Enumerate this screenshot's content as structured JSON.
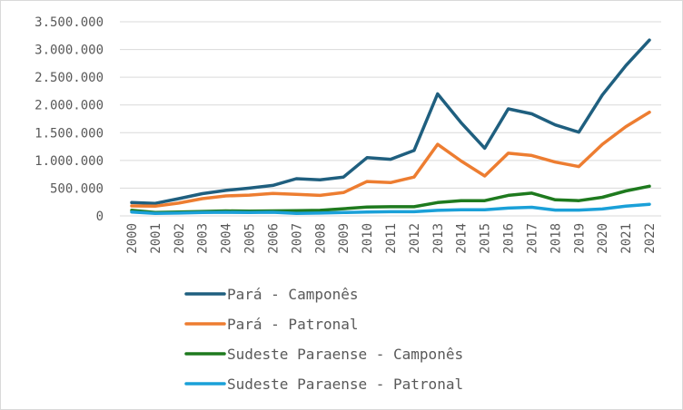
{
  "chart_data": {
    "type": "line",
    "title": "",
    "xlabel": "",
    "ylabel": "",
    "ylim": [
      0,
      3500000
    ],
    "y_ticks": [
      "0",
      "500.000",
      "1.000.000",
      "1.500.000",
      "2.000.000",
      "2.500.000",
      "3.000.000",
      "3.500.000"
    ],
    "grid": "horizontal",
    "legend_position": "bottom",
    "x": [
      "2000",
      "2001",
      "2002",
      "2003",
      "2004",
      "2005",
      "2006",
      "2007",
      "2008",
      "2009",
      "2010",
      "2011",
      "2012",
      "2013",
      "2014",
      "2015",
      "2016",
      "2017",
      "2018",
      "2019",
      "2020",
      "2021",
      "2022"
    ],
    "series": [
      {
        "name": "Pará - Camponês",
        "color": "#1f5f7f",
        "values": [
          240000,
          225000,
          310000,
          400000,
          460000,
          500000,
          550000,
          670000,
          650000,
          700000,
          1050000,
          1020000,
          1180000,
          2200000,
          1680000,
          1220000,
          1930000,
          1840000,
          1640000,
          1510000,
          2180000,
          2710000,
          3170000
        ]
      },
      {
        "name": "Pará - Patronal",
        "color": "#ed7d31",
        "values": [
          180000,
          175000,
          230000,
          310000,
          360000,
          375000,
          405000,
          390000,
          370000,
          420000,
          620000,
          600000,
          700000,
          1290000,
          990000,
          720000,
          1130000,
          1090000,
          970000,
          890000,
          1290000,
          1610000,
          1870000
        ]
      },
      {
        "name": "Sudeste Paraense - Camponês",
        "color": "#1e7a1e",
        "values": [
          100000,
          60000,
          70000,
          80000,
          90000,
          85000,
          90000,
          95000,
          100000,
          130000,
          160000,
          165000,
          165000,
          240000,
          275000,
          275000,
          370000,
          410000,
          290000,
          275000,
          335000,
          450000,
          535000
        ]
      },
      {
        "name": "Sudeste Paraense - Patronal",
        "color": "#1aa0d8",
        "values": [
          70000,
          45000,
          50000,
          60000,
          65000,
          60000,
          65000,
          45000,
          50000,
          60000,
          70000,
          75000,
          75000,
          100000,
          110000,
          110000,
          140000,
          155000,
          105000,
          105000,
          125000,
          175000,
          210000
        ]
      }
    ]
  }
}
